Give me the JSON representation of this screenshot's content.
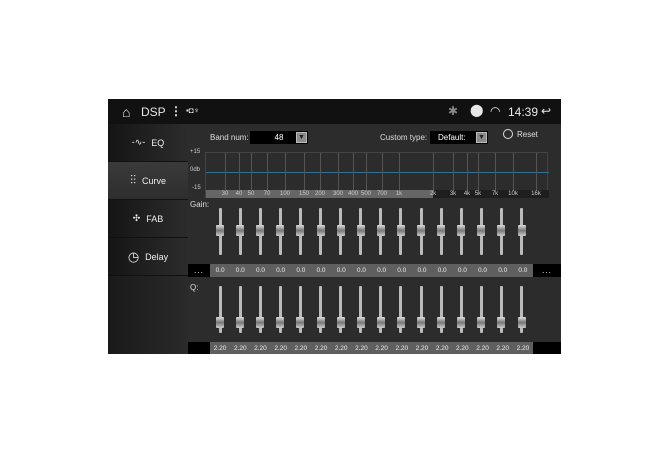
{
  "status_bar": {
    "title": "DSP",
    "time": "14:39",
    "icons": [
      "home-icon",
      "more-vert-icon",
      "image-icon",
      "shield-icon",
      "usb-icon",
      "bluetooth-icon",
      "location-icon",
      "wifi-icon",
      "back-icon"
    ]
  },
  "sidebar": {
    "items": [
      {
        "label": "EQ",
        "icon": "waveform-icon"
      },
      {
        "label": "Curve",
        "icon": "sliders-icon",
        "active": true
      },
      {
        "label": "FAB",
        "icon": "fader-balance-icon"
      },
      {
        "label": "Delay",
        "icon": "clock-icon"
      }
    ]
  },
  "controls": {
    "band_num_label": "Band num:",
    "band_num_value": "48",
    "custom_type_label": "Custom type:",
    "custom_type_value": "Default:",
    "reset_label": "Reset"
  },
  "curve": {
    "y_labels": [
      "+15",
      "0db",
      "-15"
    ],
    "freq_labels": [
      "30",
      "40",
      "50",
      "70",
      "100",
      "150",
      "200",
      "300",
      "400",
      "500",
      "700",
      "1k",
      "2k",
      "3k",
      "4k",
      "5k",
      "7k",
      "10k",
      "16k"
    ],
    "line_color": "#2f6f8f"
  },
  "gain": {
    "label": "Gain:",
    "values": [
      "0.0",
      "0.0",
      "0.0",
      "0.0",
      "0.0",
      "0.0",
      "0.0",
      "0.0",
      "0.0",
      "0.0",
      "0.0",
      "0.0",
      "0.0",
      "0.0",
      "0.0",
      "0.0"
    ],
    "prev": "...",
    "next": "..."
  },
  "q": {
    "label": "Q:",
    "values": [
      "2.20",
      "2.20",
      "2.20",
      "2.20",
      "2.20",
      "2.20",
      "2.20",
      "2.20",
      "2.20",
      "2.20",
      "2.20",
      "2.20",
      "2.20",
      "2.20",
      "2.20",
      "2.20"
    ]
  }
}
